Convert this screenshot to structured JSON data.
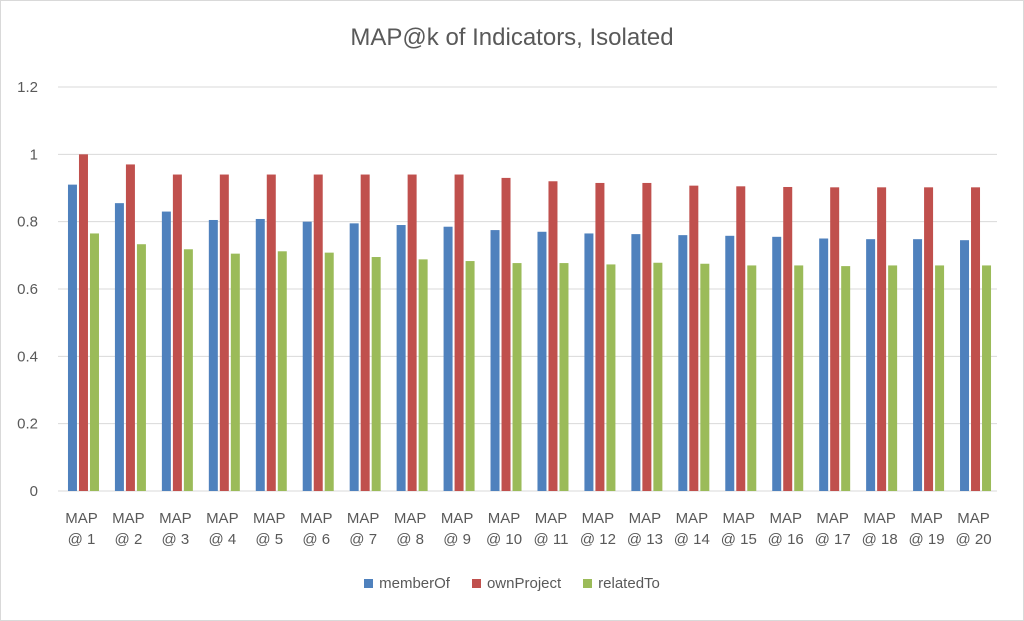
{
  "chart_data": {
    "type": "bar",
    "title": "MAP@k of Indicators, Isolated",
    "xlabel": "",
    "ylabel": "",
    "ylim": [
      0,
      1.2
    ],
    "yticks": [
      "0",
      "0.2",
      "0.4",
      "0.6",
      "0.8",
      "1",
      "1.2"
    ],
    "grid": true,
    "legend_position": "bottom",
    "categories": [
      [
        "MAP",
        "@ 1"
      ],
      [
        "MAP",
        "@ 2"
      ],
      [
        "MAP",
        "@ 3"
      ],
      [
        "MAP",
        "@ 4"
      ],
      [
        "MAP",
        "@ 5"
      ],
      [
        "MAP",
        "@ 6"
      ],
      [
        "MAP",
        "@ 7"
      ],
      [
        "MAP",
        "@ 8"
      ],
      [
        "MAP",
        "@ 9"
      ],
      [
        "MAP",
        "@ 10"
      ],
      [
        "MAP",
        "@ 11"
      ],
      [
        "MAP",
        "@ 12"
      ],
      [
        "MAP",
        "@ 13"
      ],
      [
        "MAP",
        "@ 14"
      ],
      [
        "MAP",
        "@ 15"
      ],
      [
        "MAP",
        "@ 16"
      ],
      [
        "MAP",
        "@ 17"
      ],
      [
        "MAP",
        "@ 18"
      ],
      [
        "MAP",
        "@ 19"
      ],
      [
        "MAP",
        "@ 20"
      ]
    ],
    "series": [
      {
        "name": "memberOf",
        "color": "#4f81bd",
        "values": [
          0.91,
          0.855,
          0.83,
          0.805,
          0.808,
          0.8,
          0.795,
          0.79,
          0.785,
          0.775,
          0.77,
          0.765,
          0.763,
          0.76,
          0.758,
          0.755,
          0.75,
          0.748,
          0.748,
          0.745
        ]
      },
      {
        "name": "ownProject",
        "color": "#c0504d",
        "values": [
          1.0,
          0.97,
          0.94,
          0.94,
          0.94,
          0.94,
          0.94,
          0.94,
          0.94,
          0.93,
          0.92,
          0.915,
          0.915,
          0.907,
          0.905,
          0.903,
          0.902,
          0.902,
          0.902,
          0.902
        ]
      },
      {
        "name": "relatedTo",
        "color": "#9bbb59",
        "values": [
          0.765,
          0.733,
          0.718,
          0.705,
          0.712,
          0.708,
          0.695,
          0.688,
          0.683,
          0.677,
          0.677,
          0.673,
          0.678,
          0.675,
          0.67,
          0.67,
          0.668,
          0.67,
          0.67,
          0.67
        ]
      }
    ]
  }
}
